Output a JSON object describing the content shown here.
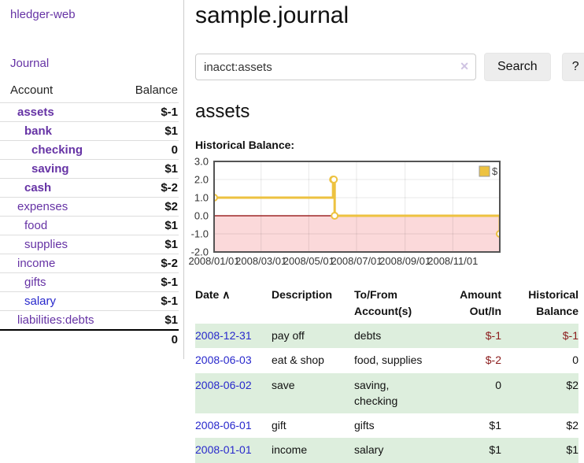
{
  "app": {
    "brand": "hledger-web"
  },
  "sidebar": {
    "nav": [
      {
        "label": "Journal"
      }
    ],
    "accounts_table": {
      "headers": {
        "account": "Account",
        "balance": "Balance"
      },
      "rows": [
        {
          "name": "assets",
          "depth": 0,
          "bold": true,
          "balance": "$-1",
          "balance_style": "neg-strong"
        },
        {
          "name": "bank",
          "depth": 1,
          "bold": true,
          "balance": "$1",
          "balance_style": "pos"
        },
        {
          "name": "checking",
          "depth": 2,
          "bold": true,
          "balance": "0",
          "balance_style": "pos"
        },
        {
          "name": "saving",
          "depth": 2,
          "bold": true,
          "balance": "$1",
          "balance_style": "pos"
        },
        {
          "name": "cash",
          "depth": 1,
          "bold": true,
          "balance": "$-2",
          "balance_style": "neg-strong"
        },
        {
          "name": "expenses",
          "depth": 0,
          "bold": false,
          "balance": "$2",
          "balance_style": "pos"
        },
        {
          "name": "food",
          "depth": 1,
          "bold": false,
          "balance": "$1",
          "balance_style": "pos"
        },
        {
          "name": "supplies",
          "depth": 1,
          "bold": false,
          "balance": "$1",
          "balance_style": "pos"
        },
        {
          "name": "income",
          "depth": 0,
          "bold": false,
          "balance": "$-2",
          "balance_style": "neg-soft"
        },
        {
          "name": "gifts",
          "depth": 1,
          "bold": false,
          "balance": "$-1",
          "balance_style": "neg-soft"
        },
        {
          "name": "salary",
          "depth": 1,
          "bold": false,
          "link_style": "blue",
          "balance": "$-1",
          "balance_style": "neg-soft"
        },
        {
          "name": "liabilities:debts",
          "depth": 0,
          "bold": false,
          "balance": "$1",
          "balance_style": "pos"
        }
      ],
      "total": "0"
    }
  },
  "header": {
    "title": "sample.journal"
  },
  "search": {
    "value": "inacct:assets",
    "clear_icon": "✕",
    "button": "Search",
    "help_button": "?"
  },
  "account_page": {
    "title": "assets",
    "chart_label": "Historical Balance:"
  },
  "chart_data": {
    "type": "line",
    "step": true,
    "title": "Historical Balance",
    "series": [
      {
        "name": "$",
        "color": "#edc240",
        "points": [
          [
            "2008-01-01",
            1
          ],
          [
            "2008-06-01",
            2
          ],
          [
            "2008-06-02",
            2
          ],
          [
            "2008-06-03",
            0
          ],
          [
            "2008-12-31",
            -1
          ]
        ]
      }
    ],
    "x_range": [
      "2008-01-01",
      "2008-12-31"
    ],
    "ylim": [
      -2,
      3
    ],
    "y_ticks": [
      "3.0",
      "2.0",
      "1.0",
      "0.0",
      "-1.0",
      "-2.0"
    ],
    "x_ticks": [
      "2008/01/01",
      "2008/03/01",
      "2008/05/01",
      "2008/07/01",
      "2008/09/01",
      "2008/11/01"
    ],
    "legend": {
      "position": "top-right",
      "label": "$"
    },
    "grid": true,
    "negative_region_fill": "#fbd9da",
    "zero_line_color": "#8b0000",
    "border_color": "#545454"
  },
  "register": {
    "columns": {
      "date": "Date",
      "description": "Description",
      "accounts": "To/From Account(s)",
      "amount": "Amount Out/In",
      "balance": "Historical Balance"
    },
    "sort_indicator": "∧",
    "rows": [
      {
        "date": "2008-12-31",
        "description": "pay off",
        "accounts": "debts",
        "amount": "$-1",
        "amount_neg": true,
        "balance": "$-1",
        "balance_neg": true
      },
      {
        "date": "2008-06-03",
        "description": "eat & shop",
        "accounts": "food, supplies",
        "amount": "$-2",
        "amount_neg": true,
        "balance": "0",
        "balance_neg": false
      },
      {
        "date": "2008-06-02",
        "description": "save",
        "accounts": "saving, checking",
        "amount": "0",
        "amount_neg": false,
        "balance": "$2",
        "balance_neg": false
      },
      {
        "date": "2008-06-01",
        "description": "gift",
        "accounts": "gifts",
        "amount": "$1",
        "amount_neg": false,
        "balance": "$2",
        "balance_neg": false
      },
      {
        "date": "2008-01-01",
        "description": "income",
        "accounts": "salary",
        "amount": "$1",
        "amount_neg": false,
        "balance": "$1",
        "balance_neg": false
      }
    ]
  },
  "colors": {
    "link-purple": "#6633a5",
    "link-blue": "#2828cc",
    "neg-strong": "#a01010",
    "neg-soft": "#bf7575",
    "table-neg": "#8b1c1c",
    "row-stripe": "#ddeedd",
    "button-bg": "#ededed",
    "input-border": "#cccccc",
    "clear-icon": "#cfc3e2",
    "divider": "#cccccc"
  }
}
